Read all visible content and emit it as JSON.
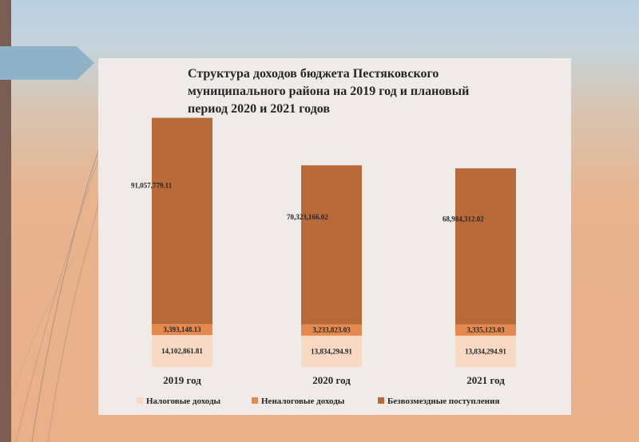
{
  "chart_data": {
    "type": "bar",
    "stacked": true,
    "title_lines": [
      "Структура доходов бюджета Пестяковского",
      "муниципального района  на 2019 год и плановый",
      "период 2020 и 2021 годов"
    ],
    "categories": [
      "2019 год",
      "2020 год",
      "2021 год"
    ],
    "series": [
      {
        "name": "Налоговые доходы",
        "color": "#f7d9c4",
        "values": [
          14102861.81,
          13834294.91,
          13834294.91
        ],
        "labels": [
          "14,102,861.81",
          "13,834,294.91",
          "13,834,294.91"
        ]
      },
      {
        "name": "Неналоговые доходы",
        "color": "#e58a4f",
        "values": [
          3393148.13,
          3233823.03,
          3335123.03
        ],
        "labels": [
          "3,393,148.13",
          "3,233,823.03",
          "3,335,123.03"
        ]
      },
      {
        "name": "Безвозмездные поступления",
        "color": "#b86a3b",
        "values": [
          91057779.11,
          70323166.02,
          68984312.02
        ],
        "labels": [
          "91,057,779.11",
          "70,323,166.02",
          "68,984,312.02"
        ]
      }
    ],
    "legend_position": "bottom",
    "grid": false
  }
}
